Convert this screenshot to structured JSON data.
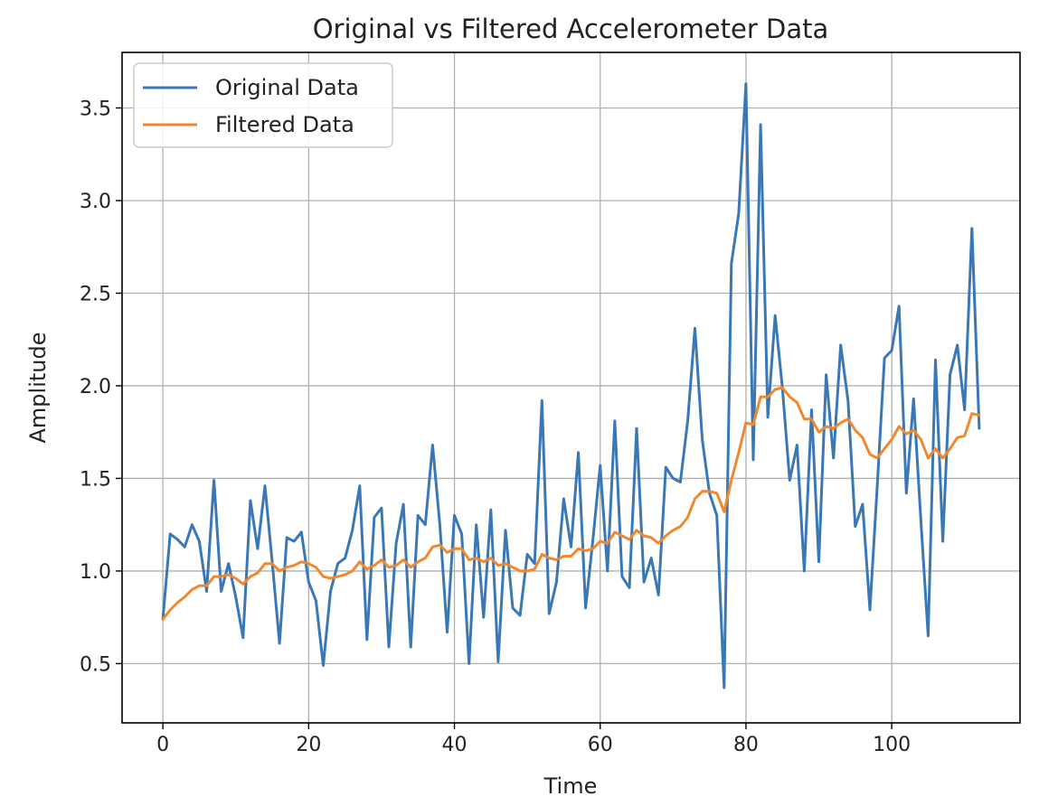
{
  "chart_data": {
    "type": "line",
    "title": "Original vs Filtered Accelerometer Data",
    "xlabel": "Time",
    "ylabel": "Amplitude",
    "xlim": [
      -5.6,
      117.6
    ],
    "ylim": [
      0.18,
      3.8
    ],
    "xticks": [
      0,
      20,
      40,
      60,
      80,
      100
    ],
    "yticks": [
      0.5,
      1.0,
      1.5,
      2.0,
      2.5,
      3.0,
      3.5
    ],
    "ytick_labels": [
      "0.5",
      "1.0",
      "1.5",
      "2.0",
      "2.5",
      "3.0",
      "3.5"
    ],
    "grid": true,
    "legend_position": "top-left",
    "series": [
      {
        "name": "Original Data",
        "color": "#3a78b5",
        "values": [
          0.74,
          1.2,
          1.17,
          1.13,
          1.25,
          1.16,
          0.89,
          1.49,
          0.89,
          1.04,
          0.86,
          0.64,
          1.38,
          1.12,
          1.46,
          1.05,
          0.61,
          1.18,
          1.16,
          1.21,
          0.94,
          0.84,
          0.49,
          0.89,
          1.04,
          1.07,
          1.22,
          1.46,
          0.63,
          1.29,
          1.34,
          0.59,
          1.15,
          1.36,
          0.59,
          1.3,
          1.25,
          1.68,
          1.25,
          0.67,
          1.3,
          1.2,
          0.5,
          1.25,
          0.75,
          1.33,
          0.51,
          1.22,
          0.8,
          0.76,
          1.09,
          1.04,
          1.92,
          0.77,
          0.94,
          1.39,
          1.13,
          1.64,
          0.8,
          1.17,
          1.57,
          1.0,
          1.81,
          0.97,
          0.91,
          1.77,
          0.94,
          1.07,
          0.87,
          1.56,
          1.5,
          1.48,
          1.81,
          2.31,
          1.71,
          1.42,
          1.3,
          0.37,
          2.66,
          2.93,
          3.63,
          1.6,
          3.41,
          1.83,
          2.38,
          1.99,
          1.49,
          1.68,
          1.0,
          1.87,
          1.05,
          2.06,
          1.61,
          2.22,
          1.92,
          1.24,
          1.36,
          0.79,
          1.45,
          2.15,
          2.19,
          2.43,
          1.42,
          1.93,
          1.27,
          0.65,
          2.14,
          1.16,
          2.06,
          2.22,
          1.87,
          2.85,
          1.77
        ]
      },
      {
        "name": "Filtered Data",
        "color": "#f0882f",
        "values": [
          0.74,
          0.79,
          0.83,
          0.86,
          0.9,
          0.92,
          0.92,
          0.97,
          0.97,
          0.98,
          0.96,
          0.93,
          0.97,
          0.99,
          1.04,
          1.04,
          1.0,
          1.02,
          1.03,
          1.05,
          1.04,
          1.02,
          0.97,
          0.96,
          0.97,
          0.98,
          1.0,
          1.05,
          1.01,
          1.03,
          1.06,
          1.02,
          1.03,
          1.06,
          1.02,
          1.05,
          1.07,
          1.13,
          1.14,
          1.1,
          1.12,
          1.12,
          1.06,
          1.07,
          1.05,
          1.07,
          1.03,
          1.04,
          1.02,
          1.0,
          1.0,
          1.01,
          1.09,
          1.07,
          1.06,
          1.08,
          1.08,
          1.12,
          1.11,
          1.12,
          1.16,
          1.15,
          1.21,
          1.19,
          1.17,
          1.22,
          1.19,
          1.18,
          1.15,
          1.19,
          1.22,
          1.24,
          1.29,
          1.39,
          1.43,
          1.43,
          1.42,
          1.32,
          1.49,
          1.64,
          1.8,
          1.79,
          1.94,
          1.94,
          1.98,
          1.99,
          1.94,
          1.91,
          1.82,
          1.82,
          1.75,
          1.78,
          1.77,
          1.8,
          1.82,
          1.76,
          1.72,
          1.63,
          1.61,
          1.66,
          1.71,
          1.78,
          1.74,
          1.76,
          1.71,
          1.61,
          1.66,
          1.61,
          1.66,
          1.72,
          1.73,
          1.85,
          1.84
        ]
      }
    ]
  }
}
